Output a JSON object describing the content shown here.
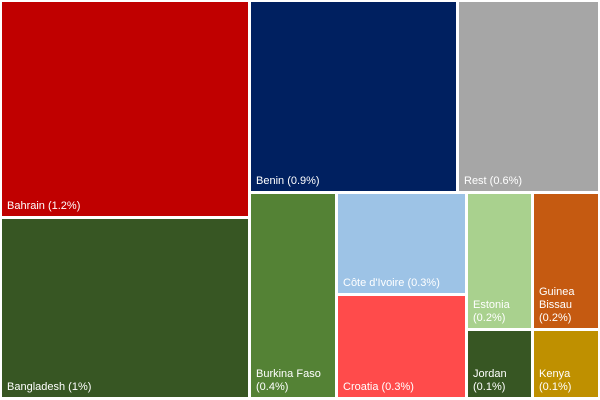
{
  "chart_data": {
    "type": "treemap",
    "title": "",
    "items": [
      {
        "name": "Bahrain (1.2%)",
        "lines": [
          "Bahrain (1.2%)"
        ],
        "value": 1.2,
        "color": "#c00000"
      },
      {
        "name": "Bangladesh (1%)",
        "lines": [
          "Bangladesh (1%)"
        ],
        "value": 1.0,
        "color": "#375623"
      },
      {
        "name": "Benin (0.9%)",
        "lines": [
          "Benin (0.9%)"
        ],
        "value": 0.9,
        "color": "#002060"
      },
      {
        "name": "Rest (0.6%)",
        "lines": [
          "Rest (0.6%)"
        ],
        "value": 0.6,
        "color": "#a6a6a6"
      },
      {
        "name": "Burkina Faso (0.4%)",
        "lines": [
          "Burkina Faso",
          "(0.4%)"
        ],
        "value": 0.4,
        "color": "#548235"
      },
      {
        "name": "Côte d'Ivoire (0.3%)",
        "lines": [
          "Côte d'Ivoire (0.3%)"
        ],
        "value": 0.3,
        "color": "#9dc3e6"
      },
      {
        "name": "Croatia (0.3%)",
        "lines": [
          "Croatia (0.3%)"
        ],
        "value": 0.3,
        "color": "#ff4b4b"
      },
      {
        "name": "Estonia (0.2%)",
        "lines": [
          "Estonia",
          "(0.2%)"
        ],
        "value": 0.2,
        "color": "#a9d18e"
      },
      {
        "name": "Jordan (0.1%)",
        "lines": [
          "Jordan",
          "(0.1%)"
        ],
        "value": 0.1,
        "color": "#375623"
      },
      {
        "name": "Guinea Bissau (0.2%)",
        "lines": [
          "Guinea",
          "Bissau",
          "(0.2%)"
        ],
        "value": 0.2,
        "color": "#c55a11"
      },
      {
        "name": "Kenya (0.1%)",
        "lines": [
          "Kenya",
          "(0.1%)"
        ],
        "value": 0.1,
        "color": "#bf9000"
      }
    ]
  }
}
